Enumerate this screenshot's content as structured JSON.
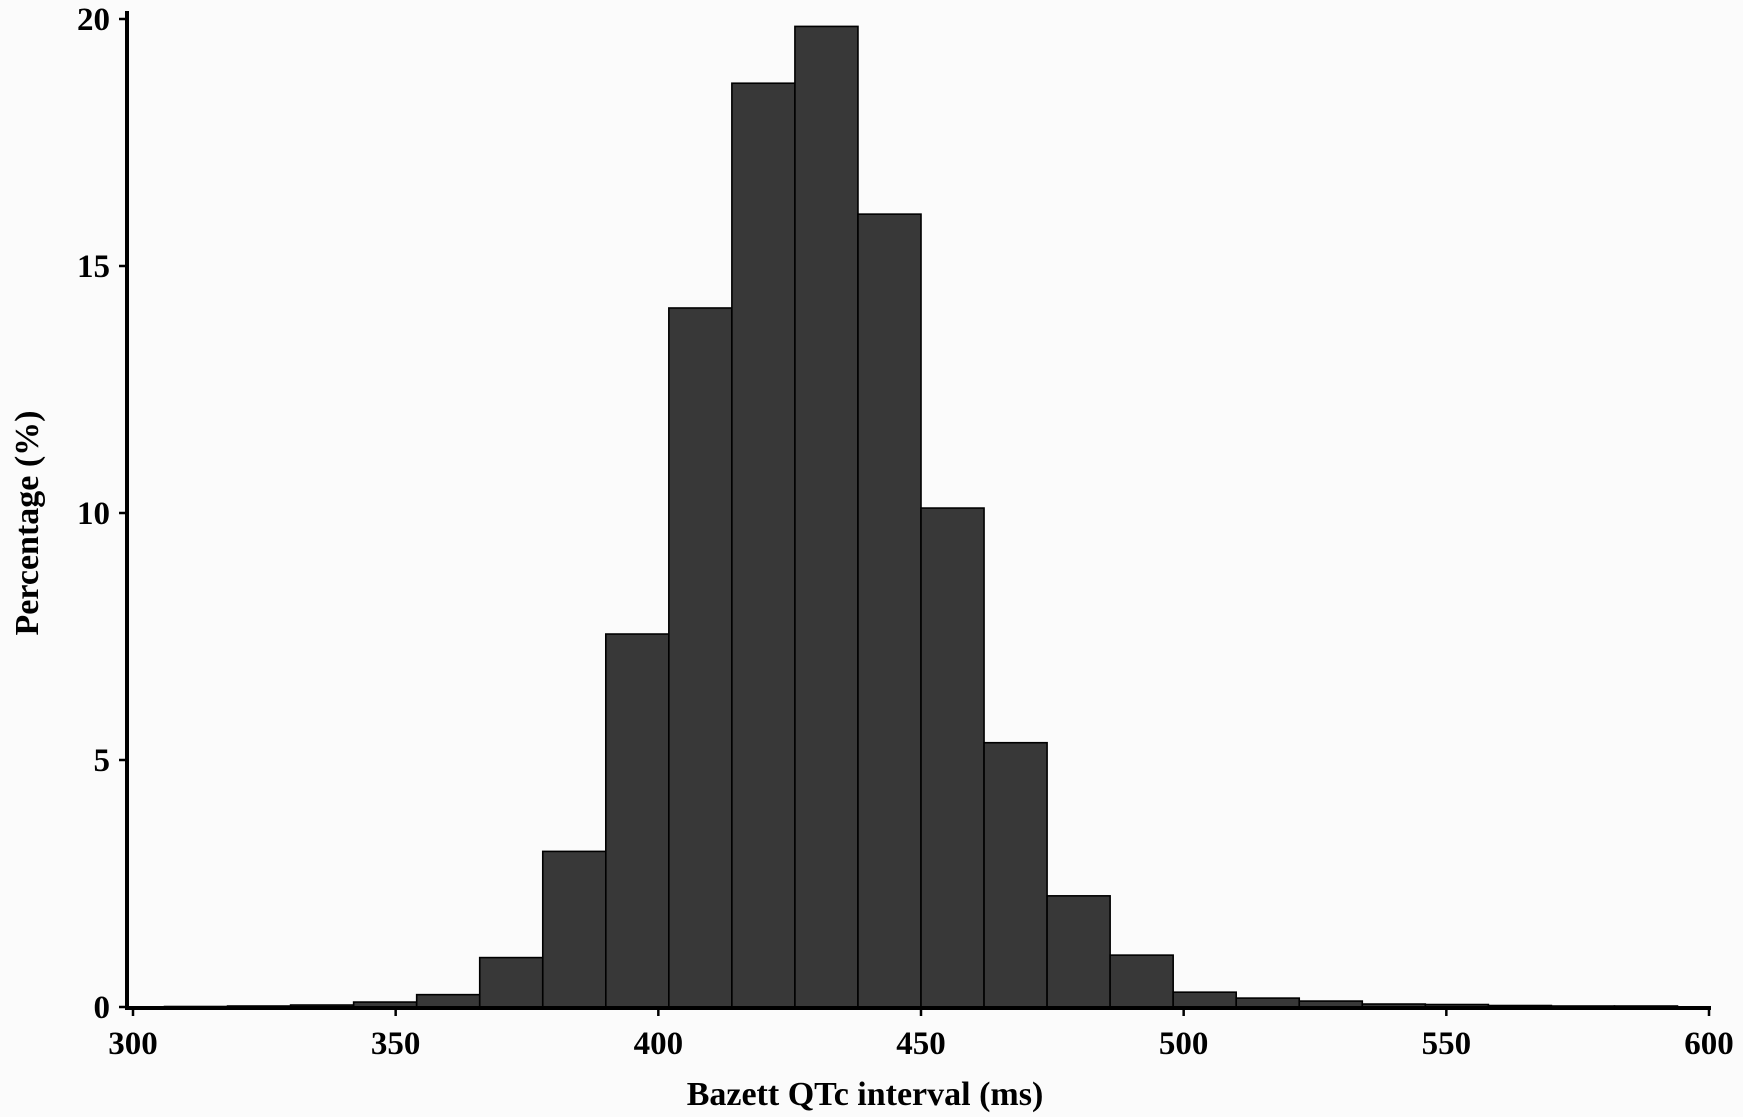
{
  "chart_data": {
    "type": "bar",
    "xlabel": "Bazett QTc interval (ms)",
    "ylabel": "Percentage (%)",
    "xlim": [
      300,
      600
    ],
    "ylim": [
      0,
      20
    ],
    "xticks": [
      300,
      350,
      400,
      450,
      500,
      550,
      600
    ],
    "yticks": [
      0,
      5,
      10,
      15,
      20
    ],
    "bin_width": 12,
    "bins": [
      {
        "x0": 306,
        "x1": 318,
        "value": 0.01
      },
      {
        "x0": 318,
        "x1": 330,
        "value": 0.02
      },
      {
        "x0": 330,
        "x1": 342,
        "value": 0.04
      },
      {
        "x0": 342,
        "x1": 354,
        "value": 0.1
      },
      {
        "x0": 354,
        "x1": 366,
        "value": 0.25
      },
      {
        "x0": 366,
        "x1": 378,
        "value": 1.0
      },
      {
        "x0": 378,
        "x1": 390,
        "value": 3.15
      },
      {
        "x0": 390,
        "x1": 402,
        "value": 7.55
      },
      {
        "x0": 402,
        "x1": 414,
        "value": 14.15
      },
      {
        "x0": 414,
        "x1": 426,
        "value": 18.7
      },
      {
        "x0": 426,
        "x1": 438,
        "value": 19.85
      },
      {
        "x0": 438,
        "x1": 450,
        "value": 16.05
      },
      {
        "x0": 450,
        "x1": 462,
        "value": 10.1
      },
      {
        "x0": 462,
        "x1": 474,
        "value": 5.35
      },
      {
        "x0": 474,
        "x1": 486,
        "value": 2.25
      },
      {
        "x0": 486,
        "x1": 498,
        "value": 1.05
      },
      {
        "x0": 498,
        "x1": 510,
        "value": 0.3
      },
      {
        "x0": 510,
        "x1": 522,
        "value": 0.18
      },
      {
        "x0": 522,
        "x1": 534,
        "value": 0.12
      },
      {
        "x0": 534,
        "x1": 546,
        "value": 0.06
      },
      {
        "x0": 546,
        "x1": 558,
        "value": 0.05
      },
      {
        "x0": 558,
        "x1": 570,
        "value": 0.03
      },
      {
        "x0": 570,
        "x1": 582,
        "value": 0.02
      },
      {
        "x0": 582,
        "x1": 594,
        "value": 0.02
      }
    ],
    "grid": false,
    "legend": "none",
    "bar_color": "#383838"
  }
}
